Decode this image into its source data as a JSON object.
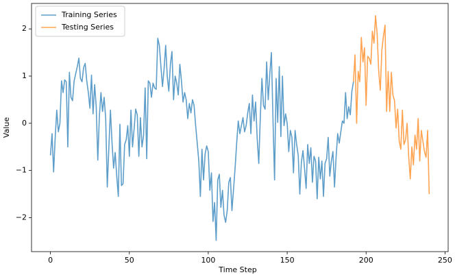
{
  "chart_data": {
    "type": "line",
    "xlabel": "Time Step",
    "ylabel": "Value",
    "xlim": [
      -12,
      252
    ],
    "ylim": [
      -2.72,
      2.54
    ],
    "xticks": [
      0,
      50,
      100,
      150,
      200,
      250
    ],
    "yticks": [
      {
        "value": -2,
        "label": "−2"
      },
      {
        "value": -1,
        "label": "−1"
      },
      0,
      1,
      2
    ],
    "legend": "upper left",
    "series": [
      {
        "name": "Training Series",
        "color": "#1f77b4",
        "x": [
          0,
          1,
          2,
          3,
          4,
          5,
          6,
          7,
          8,
          9,
          10,
          11,
          12,
          13,
          14,
          15,
          16,
          17,
          18,
          19,
          20,
          21,
          22,
          23,
          24,
          25,
          26,
          27,
          28,
          29,
          30,
          31,
          32,
          33,
          34,
          35,
          36,
          37,
          38,
          39,
          40,
          41,
          42,
          43,
          44,
          45,
          46,
          47,
          48,
          49,
          50,
          51,
          52,
          53,
          54,
          55,
          56,
          57,
          58,
          59,
          60,
          61,
          62,
          63,
          64,
          65,
          66,
          67,
          68,
          69,
          70,
          71,
          72,
          73,
          74,
          75,
          76,
          77,
          78,
          79,
          80,
          81,
          82,
          83,
          84,
          85,
          86,
          87,
          88,
          89,
          90,
          91,
          92,
          93,
          94,
          95,
          96,
          97,
          98,
          99,
          100,
          101,
          102,
          103,
          104,
          105,
          106,
          107,
          108,
          109,
          110,
          111,
          112,
          113,
          114,
          115,
          116,
          117,
          118,
          119,
          120,
          121,
          122,
          123,
          124,
          125,
          126,
          127,
          128,
          129,
          130,
          131,
          132,
          133,
          134,
          135,
          136,
          137,
          138,
          139,
          140,
          141,
          142,
          143,
          144,
          145,
          146,
          147,
          148,
          149,
          150,
          151,
          152,
          153,
          154,
          155,
          156,
          157,
          158,
          159,
          160,
          161,
          162,
          163,
          164,
          165,
          166,
          167,
          168,
          169,
          170,
          171,
          172,
          173,
          174,
          175,
          176,
          177,
          178,
          179,
          180,
          181,
          182,
          183,
          184,
          185,
          186,
          187,
          188,
          189,
          190,
          191,
          192
        ],
        "values": [
          -0.68,
          -0.22,
          -1.03,
          -0.3,
          0.28,
          -0.18,
          0.0,
          0.9,
          0.65,
          0.92,
          0.88,
          -0.5,
          1.08,
          0.55,
          0.48,
          0.9,
          1.05,
          1.2,
          1.38,
          0.95,
          0.88,
          1.18,
          1.27,
          0.9,
          0.65,
          0.32,
          1.02,
          0.2,
          0.82,
          0.35,
          -0.78,
          0.15,
          0.65,
          0.25,
          0.55,
          0.1,
          -1.35,
          -0.52,
          0.28,
          -0.4,
          -0.95,
          -0.62,
          -1.12,
          -1.55,
          -0.02,
          -1.32,
          -1.28,
          -0.45,
          -0.35,
          -0.05,
          -0.7,
          0.28,
          -0.5,
          -0.12,
          0.3,
          0.18,
          -0.7,
          0.12,
          -0.5,
          -0.25,
          0.75,
          -0.75,
          0.9,
          0.85,
          0.55,
          0.85,
          0.75,
          0.72,
          1.8,
          1.65,
          1.2,
          0.78,
          1.15,
          1.65,
          1.0,
          0.68,
          1.25,
          1.52,
          0.5,
          1.0,
          0.85,
          0.6,
          1.25,
          0.9,
          0.45,
          0.65,
          0.5,
          0.1,
          0.42,
          0.22,
          0.5,
          0.38,
          -0.05,
          -0.42,
          -0.8,
          -1.55,
          -0.55,
          -1.2,
          -0.65,
          -0.48,
          -0.6,
          -1.42,
          -1.05,
          -2.08,
          -1.68,
          -2.48,
          -1.2,
          -1.08,
          -1.78,
          -1.42,
          -1.95,
          -2.1,
          -1.85,
          -1.25,
          -1.15,
          -1.85,
          -1.4,
          -0.95,
          -0.42,
          0.05,
          -0.22,
          -0.05,
          0.12,
          -0.18,
          -0.05,
          0.22,
          0.42,
          -0.22,
          0.6,
          0.05,
          0.45,
          -0.32,
          -0.85,
          0.15,
          0.95,
          0.38,
          0.3,
          1.3,
          0.5,
          1.05,
          1.5,
          0.1,
          -1.2,
          0.95,
          0.02,
          1.2,
          -0.28,
          1.0,
          -0.05,
          0.2,
          0.0,
          -0.6,
          -0.15,
          -0.3,
          -1.05,
          -0.15,
          -0.45,
          -0.68,
          -1.5,
          -0.82,
          -0.58,
          -0.95,
          -1.38,
          -0.45,
          -0.85,
          -0.52,
          -1.25,
          -0.7,
          -0.8,
          -1.6,
          -0.72,
          -1.18,
          -0.8,
          -1.55,
          -0.85,
          -0.75,
          -0.3,
          -1.12,
          -0.8,
          -0.6,
          -1.35,
          -0.72,
          -0.22,
          -0.42,
          -0.18,
          0.05,
          0.0,
          0.65,
          0.1,
          0.35,
          0.18,
          0.68,
          0.88
        ]
      },
      {
        "name": "Testing Series",
        "color": "#ff7f0e",
        "x": [
          192,
          193,
          194,
          195,
          196,
          197,
          198,
          199,
          200,
          201,
          202,
          203,
          204,
          205,
          206,
          207,
          208,
          209,
          210,
          211,
          212,
          213,
          214,
          215,
          216,
          217,
          218,
          219,
          220,
          221,
          222,
          223,
          224,
          225,
          226,
          227,
          228,
          229,
          230,
          231,
          232,
          233,
          234,
          235,
          236,
          237,
          238,
          239,
          240
        ],
        "values": [
          0.88,
          1.45,
          0.0,
          1.1,
          0.88,
          1.82,
          1.3,
          1.6,
          0.38,
          1.42,
          1.38,
          1.25,
          1.95,
          1.7,
          2.28,
          1.9,
          1.1,
          0.7,
          1.55,
          1.85,
          2.08,
          0.25,
          1.1,
          0.25,
          1.08,
          0.6,
          0.48,
          -0.1,
          0.3,
          -0.38,
          -0.55,
          0.28,
          -0.45,
          -0.35,
          0.0,
          -0.7,
          -1.18,
          -0.5,
          -0.88,
          -0.25,
          -0.55,
          0.1,
          -0.8,
          -0.15,
          -0.38,
          -0.6,
          -0.72,
          -0.15,
          -1.5
        ]
      }
    ]
  }
}
